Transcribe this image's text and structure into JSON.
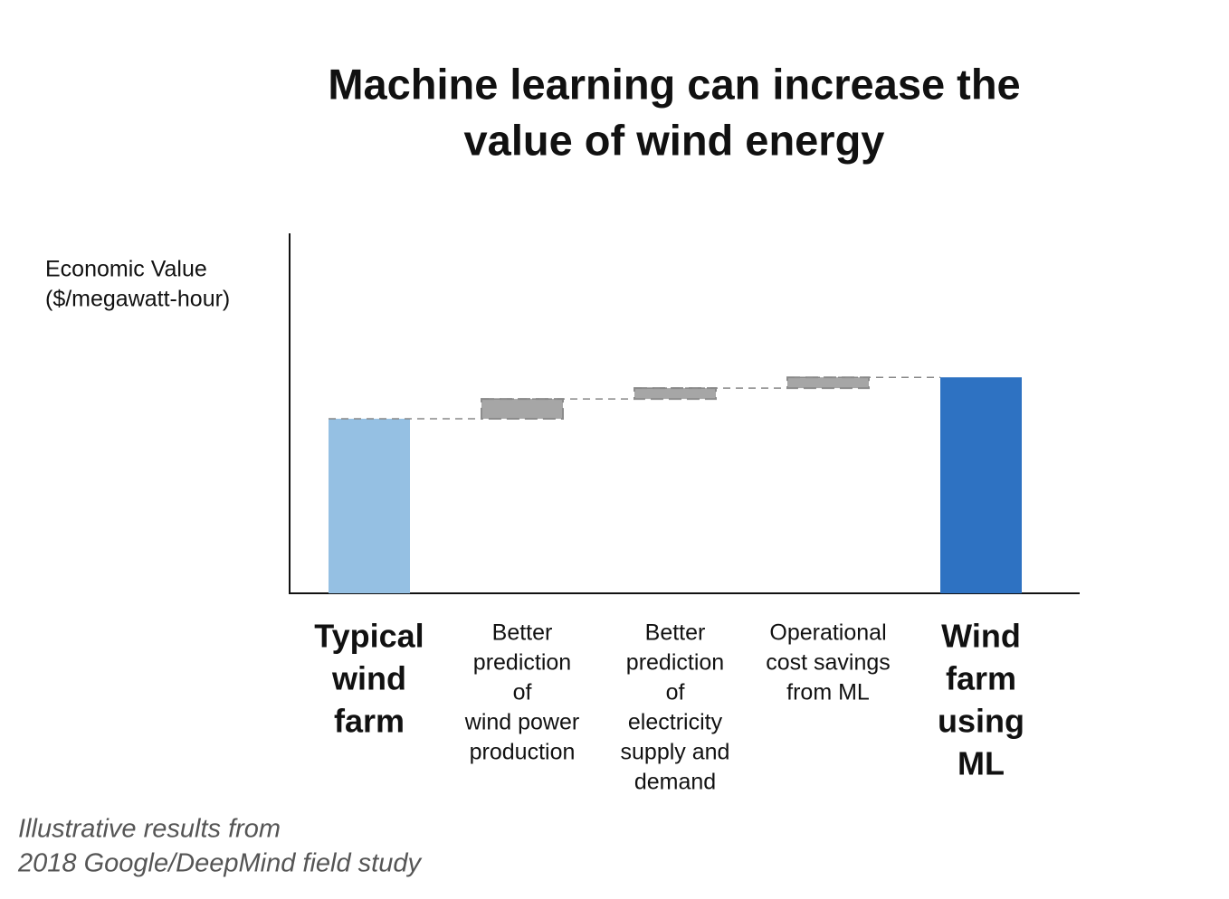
{
  "chart_data": {
    "type": "waterfall",
    "title": [
      "Machine learning can increase the",
      "value of wind energy"
    ],
    "y_label": [
      "Economic Value",
      "($/megawatt-hour)"
    ],
    "categories": [
      [
        "Typical",
        "wind",
        "farm"
      ],
      [
        "Better",
        "prediction",
        "of",
        "wind power",
        "production"
      ],
      [
        "Better",
        "prediction",
        "of",
        "electricity",
        "supply and",
        "demand"
      ],
      [
        "Operational",
        "cost savings",
        "from ML"
      ],
      [
        "Wind",
        "farm",
        "using",
        "ML"
      ]
    ],
    "values": [
      48.5,
      5.5,
      3,
      3,
      60
    ],
    "measure": [
      "absolute",
      "relative",
      "relative",
      "relative",
      "total"
    ],
    "colors": {
      "absolute": "#95c0e3",
      "relative": "#a6a6a6",
      "total": "#2e72c2"
    },
    "ylim": [
      0,
      100
    ],
    "footnote": [
      "Illustrative results from",
      "2018 Google/DeepMind field study"
    ]
  }
}
